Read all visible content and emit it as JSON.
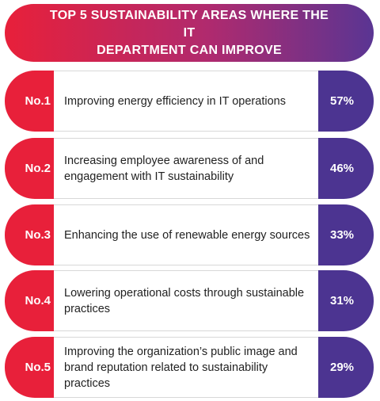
{
  "header": {
    "title": "TOP 5 SUSTAINABILITY AREAS WHERE THE IT\nDEPARTMENT CAN IMPROVE"
  },
  "colors": {
    "red": "#e8203a",
    "purple": "#4c3491"
  },
  "chart_data": {
    "type": "table",
    "title": "TOP 5 SUSTAINABILITY AREAS WHERE THE IT DEPARTMENT CAN IMPROVE",
    "rows": [
      {
        "rank": "No.1",
        "label": "Improving energy efficiency in IT operations",
        "value": 57,
        "value_label": "57%"
      },
      {
        "rank": "No.2",
        "label": "Increasing employee awareness of and engagement with IT sustainability",
        "value": 46,
        "value_label": "46%"
      },
      {
        "rank": "No.3",
        "label": "Enhancing the use of renewable energy sources",
        "value": 33,
        "value_label": "33%"
      },
      {
        "rank": "No.4",
        "label": "Lowering operational costs through sustainable practices",
        "value": 31,
        "value_label": "31%"
      },
      {
        "rank": "No.5",
        "label": "Improving the organization’s public image and brand reputation related to sustainability practices",
        "value": 29,
        "value_label": "29%"
      }
    ]
  }
}
